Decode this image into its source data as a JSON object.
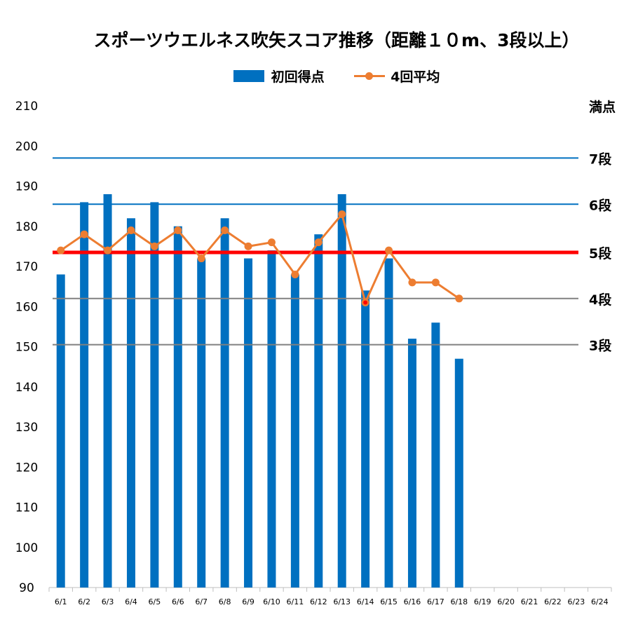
{
  "chart_data": {
    "type": "bar",
    "title": "スポーツウエルネス吹矢スコア推移（距離１０m、3段以上）",
    "xlabel": "",
    "ylabel": "",
    "ylim": [
      90,
      210
    ],
    "yticks": [
      90,
      100,
      110,
      120,
      130,
      140,
      150,
      160,
      170,
      180,
      190,
      200,
      210
    ],
    "categories": [
      "6/1",
      "6/2",
      "6/3",
      "6/4",
      "6/5",
      "6/6",
      "6/7",
      "6/8",
      "6/9",
      "6/10",
      "6/11",
      "6/12",
      "6/13",
      "6/14",
      "6/15",
      "6/16",
      "6/17",
      "6/18",
      "6/19",
      "6/20",
      "6/21",
      "6/22",
      "6/23",
      "6/24"
    ],
    "legend_position": "top",
    "grid": false,
    "series": [
      {
        "name": "初回得点",
        "type": "bar",
        "color": "#0070c0",
        "values": [
          168,
          186,
          188,
          182,
          186,
          180,
          172,
          182,
          172,
          174,
          168,
          178,
          188,
          164,
          172,
          152,
          156,
          147,
          null,
          null,
          null,
          null,
          null,
          null
        ]
      },
      {
        "name": "4回平均",
        "type": "line",
        "color": "#ed7d31",
        "values": [
          174,
          178,
          174,
          179,
          175,
          179,
          172,
          179,
          175,
          176,
          168,
          176,
          183,
          161,
          174,
          166,
          166,
          162,
          null,
          null,
          null,
          null,
          null,
          null
        ]
      }
    ],
    "reference_lines": [
      {
        "label": "満点",
        "value": 210,
        "color": "#ffffff",
        "width": 0,
        "label_color": "#000000"
      },
      {
        "label": "7段",
        "value": 197,
        "color": "#0070c0",
        "width": 2,
        "label_color": "#000000"
      },
      {
        "label": "6段",
        "value": 185.5,
        "color": "#0070c0",
        "width": 2,
        "label_color": "#000000"
      },
      {
        "label": "5段",
        "value": 173.5,
        "color": "#ff0000",
        "width": 5,
        "label_color": "#ff0000"
      },
      {
        "label": "4段",
        "value": 162,
        "color": "#808080",
        "width": 2,
        "label_color": "#000000"
      },
      {
        "label": "3段",
        "value": 150.5,
        "color": "#808080",
        "width": 2,
        "label_color": "#000000"
      }
    ],
    "highlight_marker": {
      "index": 13,
      "color": "#ff0000"
    }
  }
}
